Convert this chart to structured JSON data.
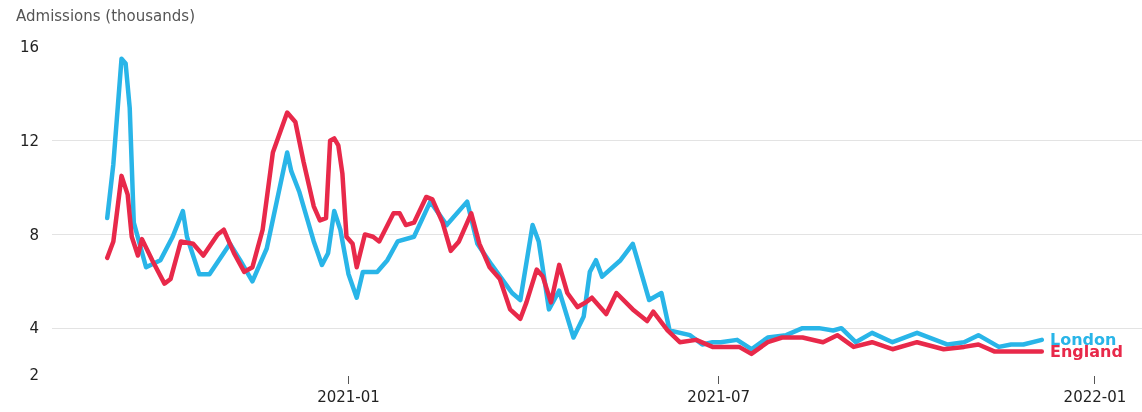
{
  "chart_data": {
    "type": "line",
    "title": "Admissions (thousands)",
    "legend": false,
    "grid": "y",
    "line_style": "solid",
    "marker": "none",
    "xlim": [
      "2020-08-09",
      "2022-01-24"
    ],
    "xticks": [
      {
        "value": "2021-01-01",
        "label": "2021-01"
      },
      {
        "value": "2021-07-01",
        "label": "2021-07"
      },
      {
        "value": "2022-01-01",
        "label": "2022-01"
      }
    ],
    "ylim": [
      2,
      16
    ],
    "yticks": [
      2,
      4,
      8,
      12,
      16
    ],
    "series": [
      {
        "name": "London",
        "color": "#29b5e8",
        "x": [
          "2020-09-05",
          "2020-09-08",
          "2020-09-12",
          "2020-09-14",
          "2020-09-16",
          "2020-09-18",
          "2020-09-24",
          "2020-10-01",
          "2020-10-07",
          "2020-10-12",
          "2020-10-14",
          "2020-10-20",
          "2020-10-25",
          "2020-11-04",
          "2020-11-09",
          "2020-11-15",
          "2020-11-22",
          "2020-12-02",
          "2020-12-04",
          "2020-12-08",
          "2020-12-15",
          "2020-12-19",
          "2020-12-22",
          "2020-12-25",
          "2020-12-28",
          "2021-01-01",
          "2021-01-05",
          "2021-01-08",
          "2021-01-15",
          "2021-01-20",
          "2021-01-25",
          "2021-02-02",
          "2021-02-10",
          "2021-02-18",
          "2021-02-28",
          "2021-03-05",
          "2021-03-12",
          "2021-03-22",
          "2021-03-26",
          "2021-04-01",
          "2021-04-04",
          "2021-04-09",
          "2021-04-14",
          "2021-04-21",
          "2021-04-26",
          "2021-04-29",
          "2021-05-02",
          "2021-05-05",
          "2021-05-14",
          "2021-05-20",
          "2021-05-25",
          "2021-05-28",
          "2021-06-03",
          "2021-06-07",
          "2021-06-17",
          "2021-06-23",
          "2021-06-28",
          "2021-07-02",
          "2021-07-10",
          "2021-07-17",
          "2021-07-25",
          "2021-08-03",
          "2021-08-11",
          "2021-08-19",
          "2021-08-26",
          "2021-08-30",
          "2021-09-06",
          "2021-09-14",
          "2021-09-24",
          "2021-10-06",
          "2021-10-21",
          "2021-10-29",
          "2021-11-05",
          "2021-11-15",
          "2021-11-21",
          "2021-11-27",
          "2021-12-06"
        ],
        "values": [
          8.7,
          11.0,
          15.5,
          15.3,
          13.4,
          8.5,
          6.6,
          6.9,
          7.9,
          9.0,
          7.9,
          6.3,
          6.3,
          7.6,
          6.9,
          6.0,
          7.4,
          11.5,
          10.7,
          9.8,
          7.7,
          6.7,
          7.2,
          9.0,
          8.2,
          6.3,
          5.3,
          6.4,
          6.4,
          6.9,
          7.7,
          7.9,
          9.4,
          8.4,
          9.4,
          7.6,
          6.7,
          5.5,
          5.2,
          8.4,
          7.7,
          4.8,
          5.6,
          3.6,
          4.5,
          6.4,
          6.9,
          6.2,
          6.9,
          7.6,
          6.1,
          5.2,
          5.5,
          3.9,
          3.7,
          3.3,
          3.4,
          3.4,
          3.5,
          3.1,
          3.6,
          3.7,
          4.0,
          4.0,
          3.9,
          4.0,
          3.4,
          3.8,
          3.4,
          3.8,
          3.3,
          3.4,
          3.7,
          3.2,
          3.3,
          3.3,
          3.5
        ]
      },
      {
        "name": "England",
        "color": "#e8294a",
        "x": [
          "2020-09-05",
          "2020-09-08",
          "2020-09-12",
          "2020-09-15",
          "2020-09-17",
          "2020-09-20",
          "2020-09-22",
          "2020-09-27",
          "2020-10-03",
          "2020-10-06",
          "2020-10-11",
          "2020-10-17",
          "2020-10-22",
          "2020-10-29",
          "2020-11-01",
          "2020-11-06",
          "2020-11-11",
          "2020-11-15",
          "2020-11-20",
          "2020-11-25",
          "2020-12-02",
          "2020-12-06",
          "2020-12-10",
          "2020-12-15",
          "2020-12-18",
          "2020-12-21",
          "2020-12-23",
          "2020-12-25",
          "2020-12-27",
          "2020-12-29",
          "2020-12-31",
          "2021-01-03",
          "2021-01-05",
          "2021-01-09",
          "2021-01-13",
          "2021-01-16",
          "2021-01-23",
          "2021-01-26",
          "2021-01-29",
          "2021-02-02",
          "2021-02-08",
          "2021-02-11",
          "2021-02-16",
          "2021-02-20",
          "2021-02-24",
          "2021-03-02",
          "2021-03-06",
          "2021-03-11",
          "2021-03-16",
          "2021-03-21",
          "2021-03-26",
          "2021-03-29",
          "2021-04-03",
          "2021-04-06",
          "2021-04-10",
          "2021-04-14",
          "2021-04-18",
          "2021-04-23",
          "2021-04-27",
          "2021-04-30",
          "2021-05-07",
          "2021-05-12",
          "2021-05-20",
          "2021-05-27",
          "2021-05-30",
          "2021-06-06",
          "2021-06-12",
          "2021-06-20",
          "2021-06-28",
          "2021-07-11",
          "2021-07-17",
          "2021-07-25",
          "2021-08-01",
          "2021-08-11",
          "2021-08-21",
          "2021-08-28",
          "2021-09-05",
          "2021-09-14",
          "2021-09-24",
          "2021-10-06",
          "2021-10-19",
          "2021-10-29",
          "2021-11-05",
          "2021-11-13",
          "2021-11-21",
          "2021-11-27",
          "2021-12-06"
        ],
        "values": [
          7.0,
          7.7,
          10.5,
          9.7,
          7.9,
          7.1,
          7.8,
          6.9,
          5.9,
          6.1,
          7.7,
          7.6,
          7.1,
          8.0,
          8.2,
          7.2,
          6.4,
          6.6,
          8.2,
          11.5,
          13.2,
          12.8,
          11.1,
          9.2,
          8.6,
          8.7,
          12.0,
          12.1,
          11.8,
          10.6,
          7.9,
          7.6,
          6.6,
          8.0,
          7.9,
          7.7,
          8.9,
          8.9,
          8.4,
          8.5,
          9.6,
          9.5,
          8.5,
          7.3,
          7.7,
          8.9,
          7.6,
          6.6,
          6.1,
          4.8,
          4.4,
          5.1,
          6.5,
          6.2,
          5.1,
          6.7,
          5.5,
          4.9,
          5.1,
          5.3,
          4.6,
          5.5,
          4.8,
          4.3,
          4.7,
          3.9,
          3.4,
          3.5,
          3.2,
          3.2,
          2.9,
          3.4,
          3.6,
          3.6,
          3.4,
          3.7,
          3.2,
          3.4,
          3.1,
          3.4,
          3.1,
          3.2,
          3.3,
          3.0,
          3.0,
          3.0,
          3.0
        ]
      }
    ]
  }
}
